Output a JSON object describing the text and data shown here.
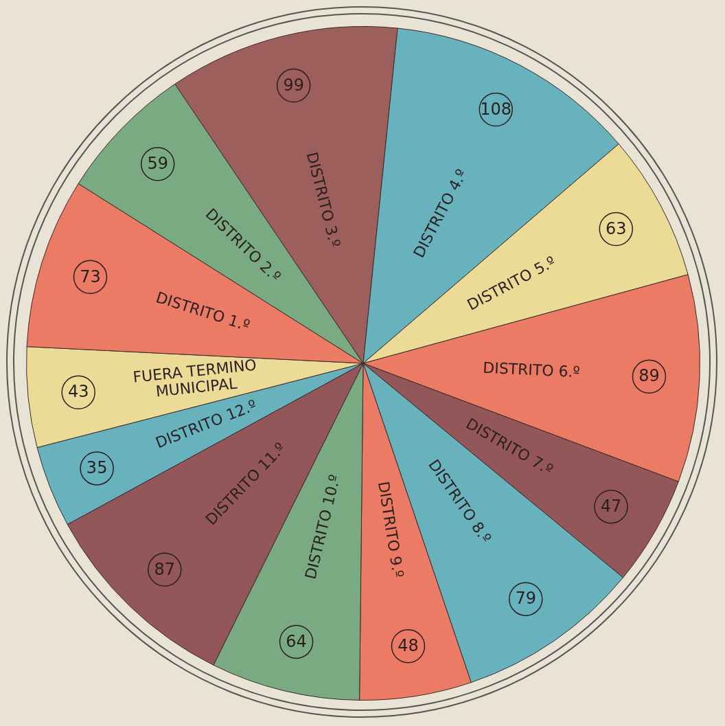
{
  "chart_data": {
    "type": "pie",
    "categories": [
      "DISTRITO 3.º",
      "DISTRITO 4.º",
      "DISTRITO 5.º",
      "DISTRITO 6.º",
      "DISTRITO 7.º",
      "DISTRITO 8.º",
      "DISTRITO 9.º",
      "DISTRITO 10.º",
      "DISTRITO 11.º",
      "DISTRITO 12.º",
      "FUERA TERMINO MUNICIPAL",
      "DISTRITO 1.º",
      "DISTRITO 2.º"
    ],
    "values": [
      99,
      108,
      63,
      89,
      47,
      79,
      48,
      64,
      87,
      35,
      43,
      73,
      59
    ],
    "colors": [
      "#9c5f5b",
      "#68b2be",
      "#ecdb97",
      "#ec7b66",
      "#935759",
      "#68b2be",
      "#ec7b66",
      "#79aa82",
      "#935759",
      "#68b2be",
      "#ecdb97",
      "#ec7b66",
      "#79aa82"
    ],
    "data_labels": true
  }
}
